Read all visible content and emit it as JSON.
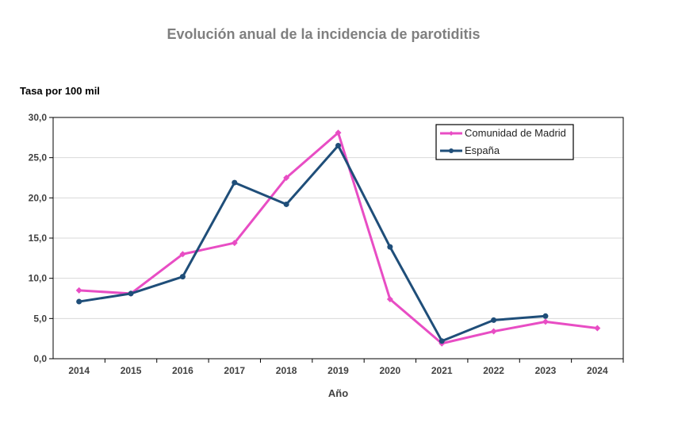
{
  "chart_data": {
    "type": "line",
    "title": "Evolución anual de la incidencia de parotiditis",
    "ylabel": "Tasa por 100 mil",
    "xlabel": "Año",
    "categories": [
      "2014",
      "2015",
      "2016",
      "2017",
      "2018",
      "2019",
      "2020",
      "2021",
      "2022",
      "2023",
      "2024"
    ],
    "ylim": [
      0,
      30
    ],
    "yticks": [
      "0,0",
      "5,0",
      "10,0",
      "15,0",
      "20,0",
      "25,0",
      "30,0"
    ],
    "grid": true,
    "legend": "top-right",
    "series": [
      {
        "name": "Comunidad de Madrid",
        "color": "#e84dc4",
        "marker": "diamond",
        "values": [
          8.5,
          8.1,
          13.0,
          14.4,
          22.5,
          28.1,
          7.4,
          1.9,
          3.4,
          4.6,
          3.8
        ]
      },
      {
        "name": "España",
        "color": "#1f4e79",
        "marker": "circle",
        "values": [
          7.1,
          8.1,
          10.2,
          21.9,
          19.2,
          26.5,
          13.9,
          2.2,
          4.8,
          5.3,
          null
        ]
      }
    ]
  }
}
